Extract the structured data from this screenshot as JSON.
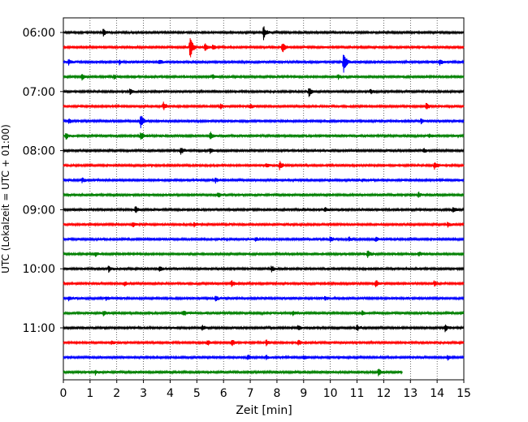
{
  "chart_data": {
    "type": "line",
    "title": "",
    "xlabel": "Zeit  [min]",
    "ylabel": "UTC (Lokalzeit = UTC + 01:00)",
    "xlim": [
      0,
      15
    ],
    "x_ticks": [
      0,
      1,
      2,
      3,
      4,
      5,
      6,
      7,
      8,
      9,
      10,
      11,
      12,
      13,
      14,
      15
    ],
    "y_tick_labels": [
      "06:00",
      "07:00",
      "08:00",
      "09:00",
      "10:00",
      "11:00"
    ],
    "grid": "vertical dotted",
    "trace_colors": [
      "#000000",
      "#ff0000",
      "#0000ff",
      "#008000"
    ],
    "series": [
      {
        "start": "06:00",
        "events": [
          [
            1.5,
            0.5
          ],
          [
            7.5,
            0.9
          ]
        ]
      },
      {
        "start": "06:15",
        "events": [
          [
            4.75,
            1.6
          ],
          [
            5.3,
            0.5
          ],
          [
            5.6,
            0.4
          ],
          [
            8.2,
            0.8
          ]
        ]
      },
      {
        "start": "06:30",
        "events": [
          [
            0.2,
            0.4
          ],
          [
            2.1,
            0.3
          ],
          [
            3.6,
            0.3
          ],
          [
            10.5,
            1.5
          ],
          [
            14.1,
            0.5
          ]
        ]
      },
      {
        "start": "06:45",
        "events": [
          [
            0.7,
            0.4
          ],
          [
            1.9,
            0.3
          ],
          [
            5.6,
            0.3
          ],
          [
            10.3,
            0.3
          ]
        ]
      },
      {
        "start": "07:00",
        "events": [
          [
            2.5,
            0.4
          ],
          [
            9.2,
            0.8
          ],
          [
            11.5,
            0.3
          ]
        ]
      },
      {
        "start": "07:15",
        "events": [
          [
            3.75,
            0.6
          ],
          [
            5.9,
            0.4
          ],
          [
            7.0,
            0.3
          ],
          [
            13.6,
            0.5
          ]
        ]
      },
      {
        "start": "07:30",
        "events": [
          [
            0.2,
            0.3
          ],
          [
            2.9,
            1.1
          ],
          [
            13.4,
            0.3
          ]
        ]
      },
      {
        "start": "07:45",
        "events": [
          [
            0.1,
            0.5
          ],
          [
            2.9,
            0.6
          ],
          [
            5.5,
            0.5
          ],
          [
            13.7,
            0.3
          ]
        ]
      },
      {
        "start": "08:00",
        "events": [
          [
            4.4,
            0.5
          ],
          [
            5.5,
            0.3
          ],
          [
            13.5,
            0.3
          ]
        ]
      },
      {
        "start": "08:15",
        "events": [
          [
            8.1,
            0.6
          ],
          [
            7.6,
            0.3
          ],
          [
            13.9,
            0.5
          ]
        ]
      },
      {
        "start": "08:30",
        "events": [
          [
            0.7,
            0.3
          ],
          [
            5.7,
            0.3
          ],
          [
            11.2,
            0.2
          ]
        ]
      },
      {
        "start": "08:45",
        "events": [
          [
            5.8,
            0.4
          ],
          [
            13.3,
            0.4
          ]
        ]
      },
      {
        "start": "09:00",
        "events": [
          [
            2.7,
            0.5
          ],
          [
            9.8,
            0.3
          ],
          [
            14.6,
            0.4
          ]
        ]
      },
      {
        "start": "09:15",
        "events": [
          [
            2.6,
            0.3
          ],
          [
            4.9,
            0.3
          ],
          [
            14.4,
            0.4
          ]
        ]
      },
      {
        "start": "09:30",
        "events": [
          [
            7.2,
            0.3
          ],
          [
            10.0,
            0.4
          ],
          [
            10.7,
            0.3
          ],
          [
            11.7,
            0.3
          ]
        ]
      },
      {
        "start": "09:45",
        "events": [
          [
            1.2,
            0.3
          ],
          [
            11.4,
            0.5
          ],
          [
            13.3,
            0.3
          ]
        ]
      },
      {
        "start": "10:00",
        "events": [
          [
            1.7,
            0.4
          ],
          [
            3.6,
            0.4
          ],
          [
            7.8,
            0.4
          ]
        ]
      },
      {
        "start": "10:15",
        "events": [
          [
            2.3,
            0.3
          ],
          [
            6.3,
            0.4
          ],
          [
            11.7,
            0.6
          ],
          [
            13.9,
            0.4
          ]
        ]
      },
      {
        "start": "10:30",
        "events": [
          [
            0.2,
            0.3
          ],
          [
            1.6,
            0.3
          ],
          [
            5.7,
            0.4
          ],
          [
            9.8,
            0.3
          ]
        ]
      },
      {
        "start": "10:45",
        "events": [
          [
            1.5,
            0.3
          ],
          [
            4.5,
            0.4
          ],
          [
            8.6,
            0.3
          ],
          [
            11.2,
            0.4
          ]
        ]
      },
      {
        "start": "11:00",
        "events": [
          [
            5.2,
            0.4
          ],
          [
            8.8,
            0.3
          ],
          [
            11.0,
            0.4
          ],
          [
            14.3,
            0.5
          ]
        ]
      },
      {
        "start": "11:15",
        "events": [
          [
            1.8,
            0.3
          ],
          [
            5.4,
            0.4
          ],
          [
            6.3,
            0.5
          ],
          [
            7.6,
            0.4
          ],
          [
            8.8,
            0.4
          ]
        ]
      },
      {
        "start": "11:30",
        "events": [
          [
            6.9,
            0.4
          ],
          [
            7.6,
            0.3
          ],
          [
            9.0,
            0.3
          ],
          [
            14.4,
            0.3
          ]
        ]
      },
      {
        "start": "11:45",
        "events": [
          [
            1.2,
            0.3
          ],
          [
            11.8,
            0.5
          ]
        ],
        "end_minute": 12.7
      }
    ]
  }
}
